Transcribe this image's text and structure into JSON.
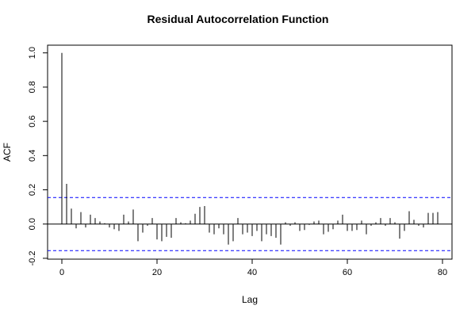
{
  "chart_data": {
    "type": "bar",
    "title": "Residual Autocorrelation Function",
    "xlabel": "Lag",
    "ylabel": "ACF",
    "xlim": [
      -3,
      82
    ],
    "ylim": [
      -0.2,
      1.0
    ],
    "xticks": [
      0,
      20,
      40,
      60,
      80
    ],
    "yticks": [
      -0.2,
      0.0,
      0.2,
      0.4,
      0.6,
      0.8,
      1.0
    ],
    "conf_limits": [
      0.155,
      -0.155
    ],
    "conf_line_color": "#0000ff",
    "zero_line": true,
    "grid": false,
    "lags": [
      0,
      1,
      2,
      3,
      4,
      5,
      6,
      7,
      8,
      9,
      10,
      11,
      12,
      13,
      14,
      15,
      16,
      17,
      18,
      19,
      20,
      21,
      22,
      23,
      24,
      25,
      26,
      27,
      28,
      29,
      30,
      31,
      32,
      33,
      34,
      35,
      36,
      37,
      38,
      39,
      40,
      41,
      42,
      43,
      44,
      45,
      46,
      47,
      48,
      49,
      50,
      51,
      52,
      53,
      54,
      55,
      56,
      57,
      58,
      59,
      60,
      61,
      62,
      63,
      64,
      65,
      66,
      67,
      68,
      69,
      70,
      71,
      72,
      73,
      74,
      75,
      76,
      77,
      78,
      79
    ],
    "values": [
      1.0,
      0.235,
      0.09,
      -0.025,
      0.07,
      -0.02,
      0.055,
      0.035,
      0.015,
      0.005,
      -0.02,
      -0.03,
      -0.04,
      0.055,
      0.015,
      0.085,
      -0.1,
      -0.05,
      -0.01,
      0.035,
      -0.09,
      -0.1,
      -0.075,
      -0.08,
      0.035,
      0.01,
      0.005,
      0.02,
      0.06,
      0.1,
      0.105,
      -0.05,
      -0.06,
      -0.025,
      -0.06,
      -0.12,
      -0.1,
      0.035,
      -0.06,
      -0.05,
      -0.07,
      -0.04,
      -0.1,
      -0.06,
      -0.07,
      -0.08,
      -0.12,
      0.01,
      -0.01,
      0.01,
      -0.04,
      -0.035,
      -0.005,
      0.015,
      0.02,
      -0.06,
      -0.045,
      -0.03,
      0.02,
      0.055,
      -0.04,
      -0.04,
      -0.035,
      0.02,
      -0.06,
      -0.01,
      0.01,
      0.035,
      -0.01,
      0.035,
      0.01,
      -0.085,
      -0.04,
      0.075,
      0.025,
      -0.01,
      -0.02,
      0.065,
      0.065,
      0.07
    ]
  }
}
